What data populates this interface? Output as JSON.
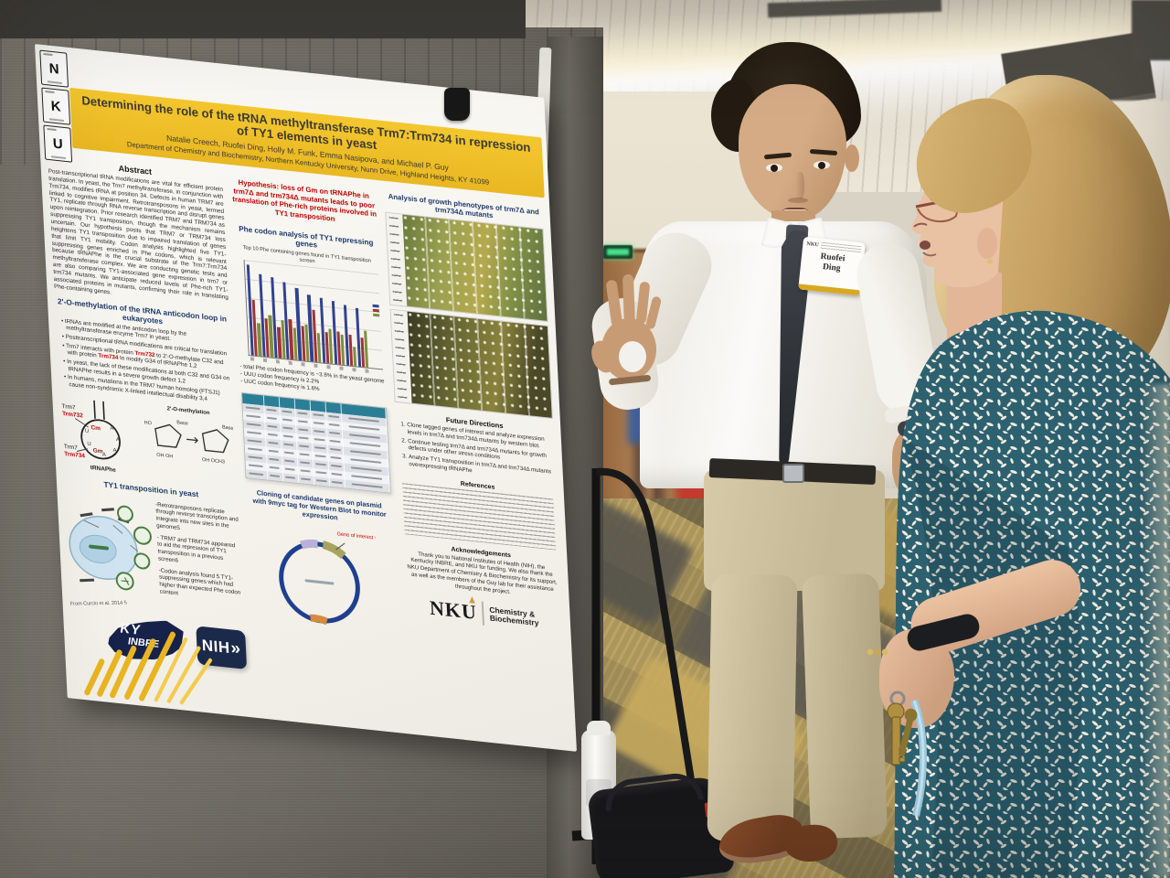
{
  "poster": {
    "title": "Determining the role of the tRNA methyltransferase Trm7:Trm734 in repression of TY1 elements in yeast",
    "authors": "Natalie Creech, Ruofei Ding, Holly M. Funk, Emma Nasipova, and Michael P. Guy",
    "affiliation": "Department of Chemistry and Biochemistry, Northern Kentucky University, Nunn Drive, Highland Heights, KY 41099",
    "tiles": [
      "N",
      "K",
      "U"
    ],
    "abstract": {
      "heading": "Abstract",
      "body": "Post-transcriptional tRNA modifications are vital for efficient protein translation. In yeast, the Trm7 methyltransferase, in conjunction with Trm734, modifies tRNA at position 34. Defects in human TRM7 are linked to cognitive impairment. Retrotransposons in yeast, termed TY1, replicate through RNA reverse transcription and disrupt genes upon reintegration. Prior research identified TRM7 and TRM734 as suppressing TY1 transposition, though the mechanism remains uncertain. Our hypothesis posits that TRM7 or TRM734 loss heightens TY1 transposition due to impaired translation of genes that limit TY1 mobility. Codon analysis highlighted five TY1-suppressing genes enriched in Phe codons, which is relevant because tRNAPhe is the crucial substrate of the Trm7:Trm734 methyltransferase complex. We are conducting genetic tests and are also comparing TY1-associated gene expression in trm7 or trm734 mutants. We anticipate reduced levels of Phe-rich TY1-associated proteins in mutants, confirming their role in translating Phe-containing genes."
    },
    "methylation": {
      "heading": "2'-O-methylation of the tRNA anticodon loop in eukaryotes",
      "bullets_before": [
        "tRNAs are modified at the anticodon loop by the methyltransferase enzyme Trm7 in yeast.",
        "Posttranscriptional tRNA modifications are critical for translation"
      ],
      "trm_parts": {
        "p0": "Trm7 interacts with protein ",
        "r1": "Trm732",
        "p2": " to 2'-O-methylate C32 and with protein ",
        "r3": "Trm734",
        "p4": " to modify G34 of tRNAPhe 1,2"
      },
      "bullets_after": [
        "In yeast, the lack of these modifications at both C32 and G34 on tRNAPhe results in a severe growth defect 1,2",
        "In humans, mutations in the TRM7 human homolog (FTSJ1) cause non-syndromic X-linked intellectual disability 3,4"
      ]
    },
    "trna_diagram": {
      "enzyme_top": "Trm7",
      "partner_top": "Trm732",
      "enzyme_bottom": "Trm7",
      "partner_bottom": "Trm734",
      "site_top": "Cm",
      "site_bottom": "Gm",
      "caption": "tRNAPhe"
    },
    "chem_diagram": {
      "title": "2'-O-methylation",
      "base_label": "Base",
      "ho": "HO",
      "left_groups": "OH  OH",
      "right_groups": "OH  OCH3"
    },
    "ty1": {
      "heading": "TY1 transposition in yeast",
      "bullets": [
        "-Retrotransposons replicate through reverse transcription and integrate into new sites in the genome5",
        "- TRM7 and TRM734 appeared to aid the repression of TY1 transposition in a previous screen6",
        "-Codon analysis found 5 TY1-suppressing genes which had higher than expected Phe codon content"
      ],
      "caption": "From Curcio et al. 2014 5"
    },
    "hypothesis": "Hypothesis: loss of Gm on tRNAPhe in trm7Δ and trm734Δ mutants leads to poor translation of Phe-rich proteins involved in TY1 transposition",
    "phe": {
      "heading": "Phe codon analysis of TY1 repressing genes",
      "chart_title": "Top 10 Phe containing genes found in TY1 transposition screen",
      "stats": [
        "- total Phe codon frequency is ~3.8% in the yeast genome",
        "- UUU codon frequency is 2.2%",
        "- UUC codon frequency is 1.6%"
      ],
      "chart_bars": {
        "series_colors": [
          "#32418f",
          "#9e3434",
          "#7d8f3c"
        ],
        "groups": [
          [
            95,
            58,
            34
          ],
          [
            86,
            40,
            44
          ],
          [
            84,
            32,
            40
          ],
          [
            80,
            42,
            33
          ],
          [
            76,
            36,
            38
          ],
          [
            70,
            54,
            30
          ],
          [
            68,
            32,
            36
          ],
          [
            66,
            34,
            31
          ],
          [
            63,
            32,
            20
          ],
          [
            61,
            30,
            38
          ]
        ]
      }
    },
    "mini_table": {
      "rows": 9,
      "cols": 7,
      "header_color": "#2a7f96"
    },
    "cloning": {
      "heading": "Cloning of candidate genes on plasmid with 9myc tag for Western Blot to monitor expression",
      "callout": "Gene of interest w/ 9myc tag"
    },
    "growth": {
      "heading": "Analysis of growth phenotypes of trm7Δ and trm734Δ mutants"
    },
    "future": {
      "heading": "Future Directions",
      "items": [
        "Clone tagged genes of interest and analyze expression levels in trm7Δ and trm734Δ mutants by western blot.",
        "Continue testing trm7Δ and trm734Δ mutants for growth defects under other stress conditions",
        "Analyze TY1 transposition in trm7Δ and trm734Δ mutants overexpressing tRNAPhe"
      ]
    },
    "references_heading": "References",
    "ack": {
      "heading": "Acknowledgements",
      "body": "Thank you to National Institutes of Health (NIH), the Kentucky INBRE, and NKU for funding. We also thank the NKU Department of Chemistry & Biochemistry for its support, as well as the members of the Guy lab for their assistance throughout the project."
    },
    "logos": {
      "ky_top": "KY",
      "ky_bottom": "INBRE",
      "nih": "NIH",
      "nih_chevron": "»",
      "nku_wordmark": "NKU",
      "dept_line1": "Chemistry &",
      "dept_line2": "Biochemistry"
    }
  },
  "badge": {
    "logo": "NKU",
    "line1": "Ruofei",
    "line2": "Ding"
  },
  "colors": {
    "poster_yellow": "#F2C12E",
    "heading_blue": "#1E3A6E",
    "accent_red": "#C00000",
    "logo_navy": "#1B2A4A",
    "dress_teal": "#2D6170",
    "badge_gold": "#D9A821",
    "table_header_teal": "#2A7F96"
  }
}
